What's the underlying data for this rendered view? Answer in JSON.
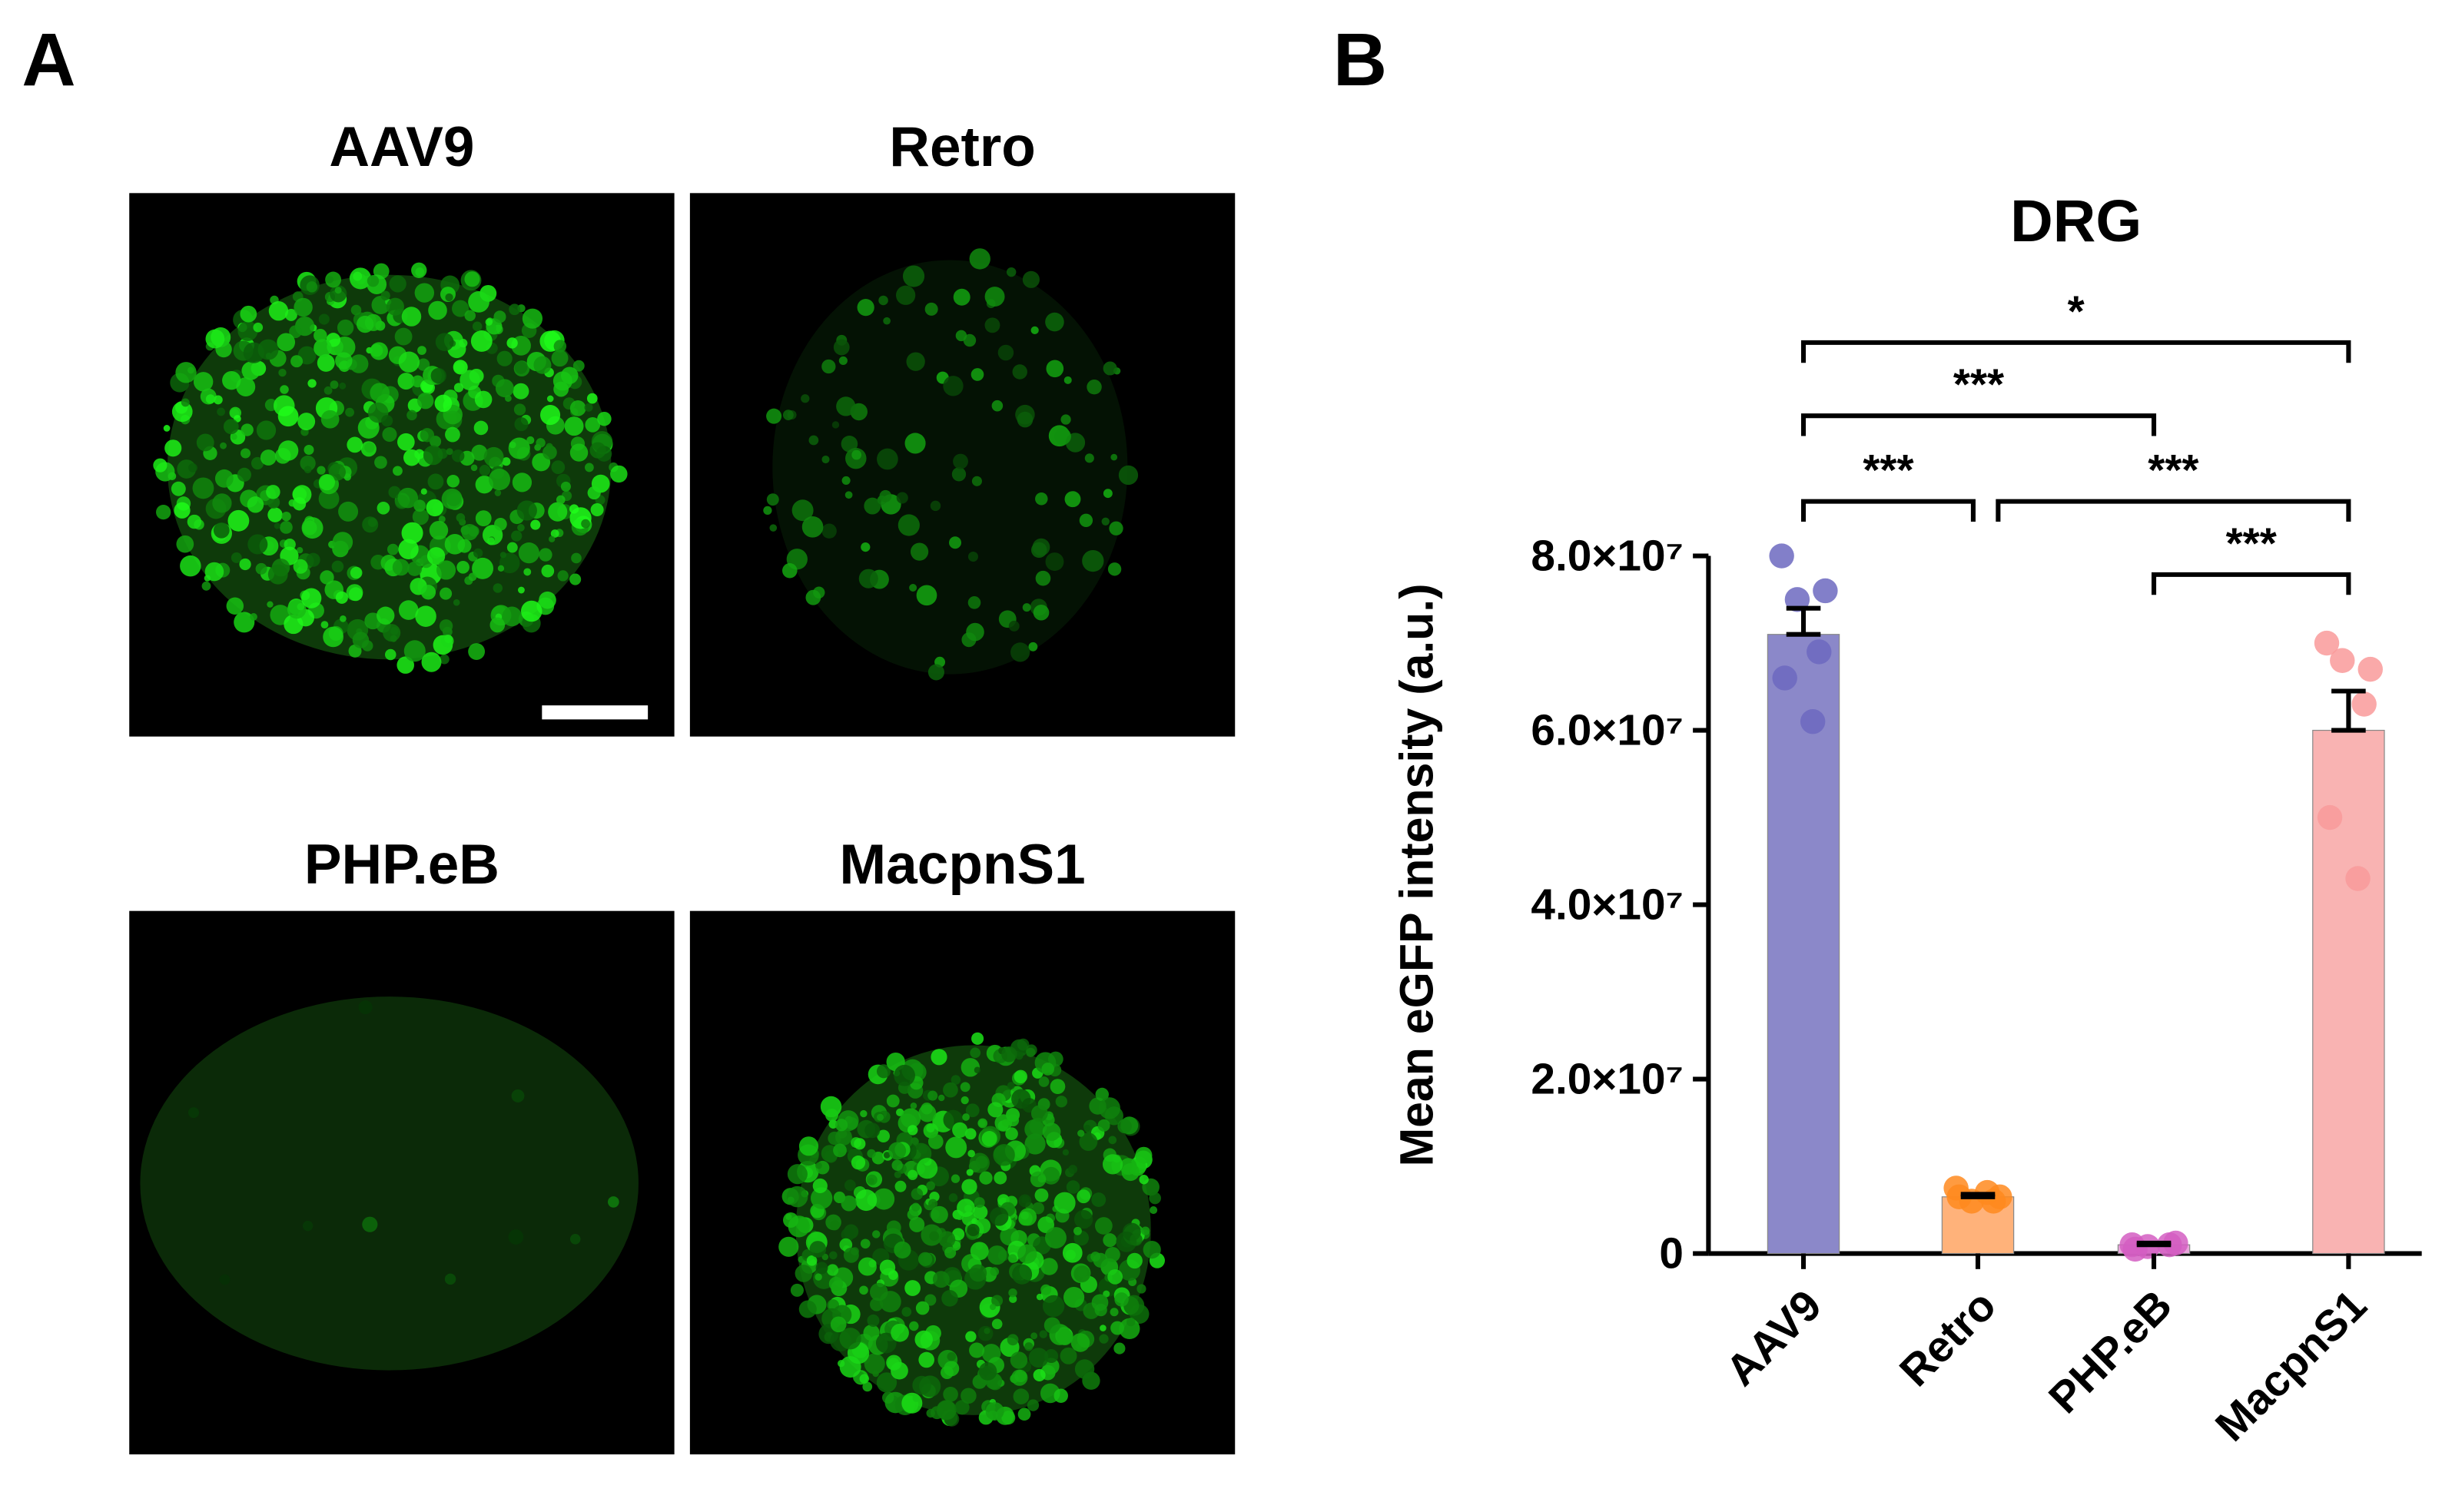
{
  "panel_labels": [
    "A",
    "B"
  ],
  "images": [
    {
      "title": "AAV9"
    },
    {
      "title": "Retro"
    },
    {
      "title": "PHP.eB"
    },
    {
      "title": "MacpnS1"
    }
  ],
  "chart_data": {
    "type": "bar",
    "title": "DRG",
    "y_label": "Mean eGFP intensity (a.u.)",
    "categories": [
      "AAV9",
      "Retro",
      "PHP.eB",
      "MacpnS1"
    ],
    "values": [
      71000000,
      6500000,
      1000000,
      60000000
    ],
    "errors": [
      3000000,
      300000,
      200000,
      4500000
    ],
    "colors": [
      "#8b88c9",
      "#ffb27a",
      "#e9a6dc",
      "#f9b3b2"
    ],
    "point_colors": [
      "#6c69c0",
      "#ff8a1f",
      "#d45ec2",
      "#f99a9a"
    ],
    "points": [
      [
        80000000,
        76000000,
        75000000,
        69000000,
        66000000,
        61000000
      ],
      [
        7500000,
        6500000,
        6000000,
        6000000,
        6500000,
        7000000
      ],
      [
        1000000,
        1200000,
        800000,
        1000000,
        500000
      ],
      [
        70000000,
        67000000,
        68000000,
        63000000,
        50000000,
        43000000
      ]
    ],
    "ylim": [
      0,
      80000000
    ],
    "yticks": [
      0,
      {
        "value": 20000000,
        "label": "2.0×10⁷"
      },
      {
        "value": 40000000,
        "label": "4.0×10⁷"
      },
      {
        "value": 60000000,
        "label": "6.0×10⁷"
      },
      {
        "value": 80000000,
        "label": "8.0×10⁷"
      }
    ],
    "significance": [
      {
        "from": "AAV9",
        "to": "MacpnS1",
        "label": "*"
      },
      {
        "from": "AAV9",
        "to": "PHP.eB",
        "label": "***"
      },
      {
        "from": "AAV9",
        "to": "Retro",
        "label": "***"
      },
      {
        "from": "Retro",
        "to": "MacpnS1",
        "label": "***"
      },
      {
        "from": "PHP.eB",
        "to": "MacpnS1",
        "label": "***"
      }
    ]
  }
}
